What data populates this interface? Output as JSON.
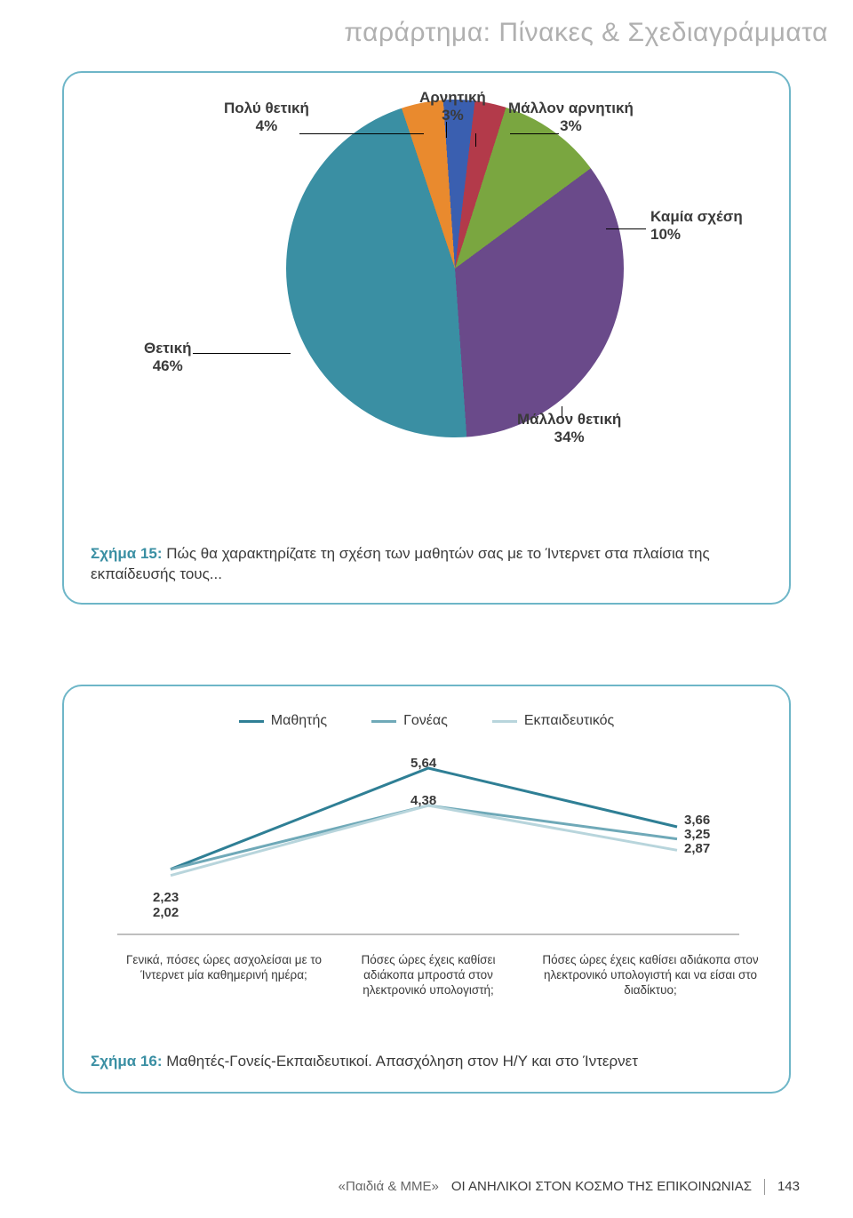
{
  "page_title": "παράρτημα: Πίνακες & Σχεδιαγράμματα",
  "page_title_color": "#b0b0b0",
  "card_border_color": "#6eb6c8",
  "pie_chart": {
    "type": "pie",
    "slices": [
      {
        "label": "Θετική",
        "pct_label": "46%",
        "value": 46,
        "color": "#3a8fa3"
      },
      {
        "label": "Πολύ θετική",
        "pct_label": "4%",
        "value": 4,
        "color": "#e98a2e"
      },
      {
        "label": "Αρνητική",
        "pct_label": "3%",
        "value": 3,
        "color": "#3a5fb0"
      },
      {
        "label": "Μάλλον αρνητική",
        "pct_label": "3%",
        "value": 3,
        "color": "#b33a4a"
      },
      {
        "label": "Καμία σχέση",
        "pct_label": "10%",
        "value": 10,
        "color": "#7aa640"
      },
      {
        "label": "Μάλλον θετική",
        "pct_label": "34%",
        "value": 34,
        "color": "#6a4a8a"
      }
    ],
    "caption_prefix": "Σχήμα 15:",
    "caption_text": "Πώς θα χαρακτηρίζατε τη σχέση των μαθητών σας με το Ίντερνετ στα πλαίσια της εκπαίδευσής τους...",
    "caption_prefix_color": "#3a8fa3",
    "start_angle_deg": 176
  },
  "line_chart": {
    "type": "line",
    "series": [
      {
        "name": "Μαθητής",
        "color": "#2f7f95",
        "values": [
          2.23,
          5.64,
          3.66
        ]
      },
      {
        "name": "Γονέας",
        "color": "#6fa9b8",
        "values": [
          2.23,
          4.38,
          3.25
        ]
      },
      {
        "name": "Εκπαιδευτικός",
        "color": "#b8d5dc",
        "values": [
          2.02,
          4.38,
          2.87
        ]
      }
    ],
    "value_labels": {
      "left_top": "2,23",
      "left_bottom": "2,02",
      "mid_top": "5,64",
      "mid_bottom": "4,38",
      "right_top": "3,66",
      "right_mid": "3,25",
      "right_bottom": "2,87"
    },
    "y_max": 6.0,
    "x_categories": [
      "Γενικά, πόσες ώρες ασχολείσαι με το Ίντερνετ μία καθημερινή ημέρα;",
      "Πόσες ώρες έχεις καθίσει αδιάκοπα μπροστά στον ηλεκτρονικό υπολογιστή;",
      "Πόσες ώρες έχεις καθίσει αδιάκοπα στον ηλεκτρονικό υπολογιστή και να είσαι στο διαδίκτυο;"
    ],
    "caption_prefix": "Σχήμα 16:",
    "caption_text": "Μαθητές-Γονείς-Εκπαιδευτικοί. Απασχόληση στον Η/Υ και στο Ίντερνετ",
    "caption_prefix_color": "#3a8fa3"
  },
  "footer": {
    "book": "«Παιδιά & ΜΜΕ»",
    "section": "ΟΙ ΑΝΗΛΙΚΟΙ ΣΤΟΝ ΚΟΣΜΟ ΤΗΣ ΕΠΙΚΟΙΝΩΝΙΑΣ",
    "page": "143"
  }
}
